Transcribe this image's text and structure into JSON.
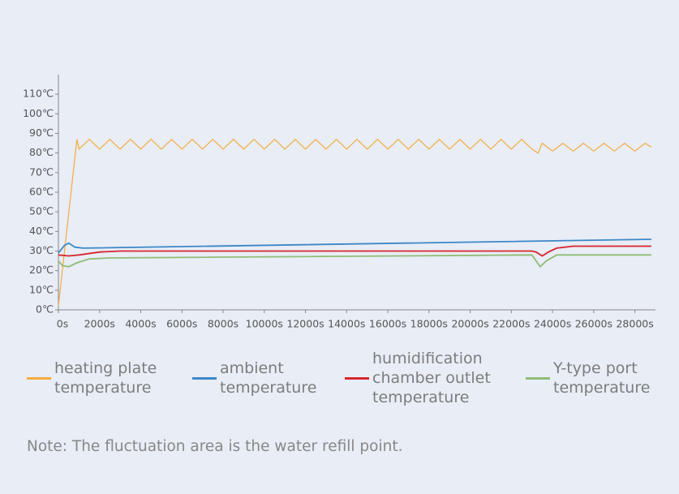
{
  "chart_data": {
    "type": "line",
    "xlim": [
      0,
      29000
    ],
    "ylim": [
      0,
      120
    ],
    "xticks": [
      {
        "value": 0,
        "label": "0s"
      },
      {
        "value": 2000,
        "label": "2000s"
      },
      {
        "value": 4000,
        "label": "4000s"
      },
      {
        "value": 6000,
        "label": "6000s"
      },
      {
        "value": 8000,
        "label": "8000s"
      },
      {
        "value": 10000,
        "label": "10000s"
      },
      {
        "value": 12000,
        "label": "12000s"
      },
      {
        "value": 14000,
        "label": "14000s"
      },
      {
        "value": 16000,
        "label": "16000s"
      },
      {
        "value": 18000,
        "label": "18000s"
      },
      {
        "value": 20000,
        "label": "20000s"
      },
      {
        "value": 22000,
        "label": "22000s"
      },
      {
        "value": 24000,
        "label": "24000s"
      },
      {
        "value": 26000,
        "label": "26000s"
      },
      {
        "value": 28000,
        "label": "28000s"
      }
    ],
    "yticks": [
      {
        "value": 0,
        "label": "0℃"
      },
      {
        "value": 10,
        "label": "10℃"
      },
      {
        "value": 20,
        "label": "20℃"
      },
      {
        "value": 30,
        "label": "30℃"
      },
      {
        "value": 40,
        "label": "40℃"
      },
      {
        "value": 50,
        "label": "50℃"
      },
      {
        "value": 60,
        "label": "60℃"
      },
      {
        "value": 70,
        "label": "70℃"
      },
      {
        "value": 80,
        "label": "80℃"
      },
      {
        "value": 90,
        "label": "90℃"
      },
      {
        "value": 100,
        "label": "100℃"
      },
      {
        "value": 110,
        "label": "110℃"
      }
    ],
    "grid": false,
    "series": [
      {
        "name": "heating plate temperature",
        "color": "#f5ab3f",
        "x": [
          0,
          900,
          1000,
          1500,
          2000,
          2500,
          3000,
          3500,
          4000,
          4500,
          5000,
          5500,
          6000,
          6500,
          7000,
          7500,
          8000,
          8500,
          9000,
          9500,
          10000,
          10500,
          11000,
          11500,
          12000,
          12500,
          13000,
          13500,
          14000,
          14500,
          15000,
          15500,
          16000,
          16500,
          17000,
          17500,
          18000,
          18500,
          19000,
          19500,
          20000,
          20500,
          21000,
          21500,
          22000,
          22500,
          23000,
          23300,
          23500,
          24000,
          24500,
          25000,
          25500,
          26000,
          26500,
          27000,
          27500,
          28000,
          28500,
          28800
        ],
        "values": [
          2,
          87,
          82,
          87,
          82,
          87,
          82,
          87,
          82,
          87,
          82,
          87,
          82,
          87,
          82,
          87,
          82,
          87,
          82,
          87,
          82,
          87,
          82,
          87,
          82,
          87,
          82,
          87,
          82,
          87,
          82,
          87,
          82,
          87,
          82,
          87,
          82,
          87,
          82,
          87,
          82,
          87,
          82,
          87,
          82,
          87,
          82,
          80,
          85,
          81,
          85,
          81,
          85,
          81,
          85,
          81,
          85,
          81,
          85,
          83
        ]
      },
      {
        "name": "ambient temperature",
        "color": "#3d87c7",
        "x": [
          0,
          300,
          500,
          800,
          1200,
          28800
        ],
        "values": [
          29,
          33,
          34,
          32,
          31.5,
          36
        ]
      },
      {
        "name": "humidification chamber outlet temperature",
        "color": "#d7262e",
        "x": [
          0,
          500,
          1000,
          2000,
          3000,
          23000,
          23200,
          23500,
          23800,
          24200,
          25000,
          28800
        ],
        "values": [
          28,
          27.5,
          28,
          29.5,
          30,
          30,
          29.5,
          27.5,
          29.5,
          31.5,
          32.5,
          32.5
        ]
      },
      {
        "name": "Y-type port temperature",
        "color": "#8fbd75",
        "x": [
          0,
          200,
          500,
          900,
          1500,
          2500,
          23000,
          23200,
          23400,
          23700,
          24200,
          28800
        ],
        "values": [
          25,
          22.5,
          22,
          24,
          26,
          26.5,
          28,
          25,
          22,
          25,
          28,
          28
        ]
      }
    ],
    "note": "Note: The fluctuation area is the water refill point."
  }
}
